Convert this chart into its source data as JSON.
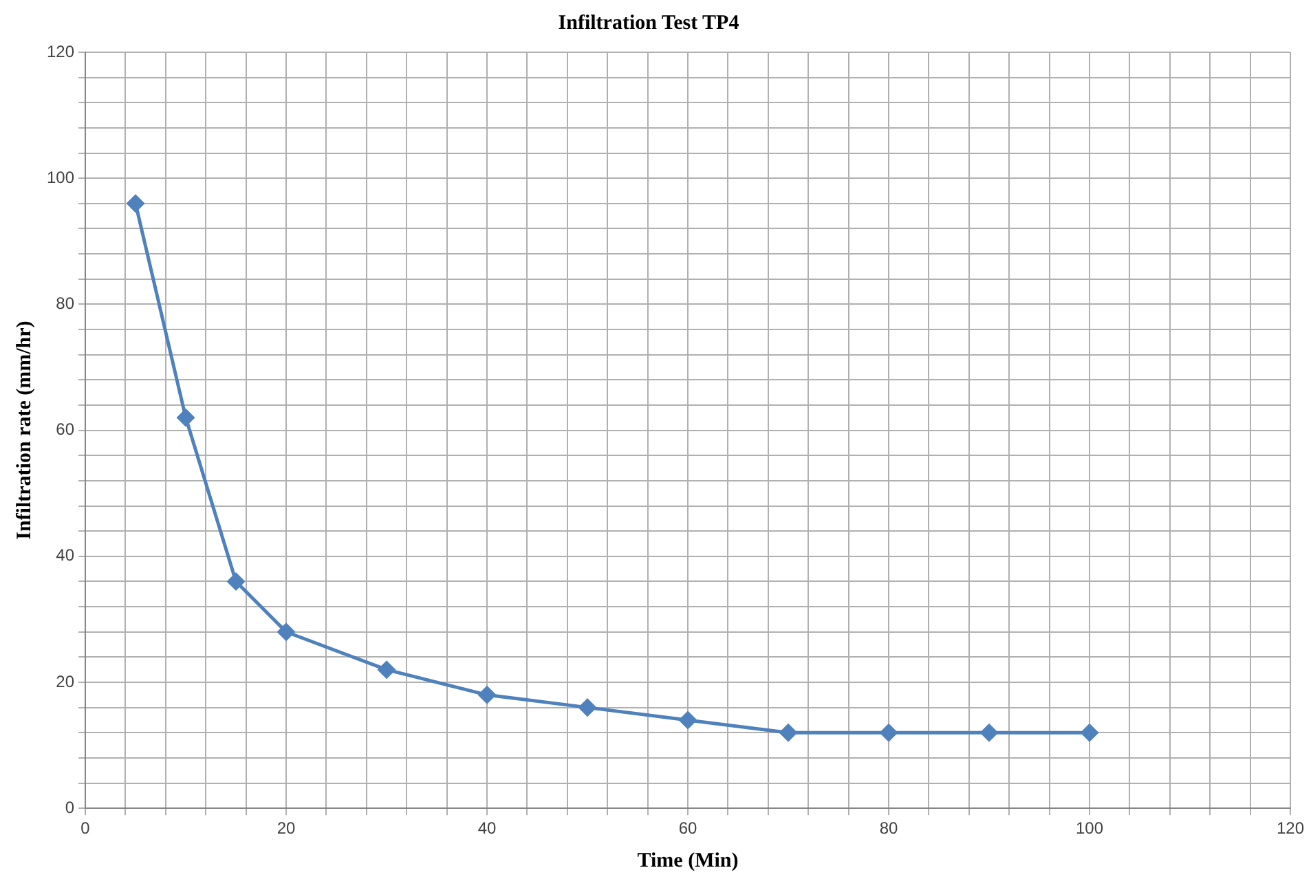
{
  "chart_data": {
    "type": "line",
    "title": "Infiltration Test TP4",
    "xlabel": "Time (Min)",
    "ylabel": "Infiltration rate (mm/hr)",
    "x": [
      5,
      10,
      15,
      20,
      30,
      40,
      50,
      60,
      70,
      80,
      90,
      100
    ],
    "series": [
      {
        "color": "#4f81bd",
        "values": [
          96,
          62,
          36,
          28,
          22,
          18,
          16,
          14,
          12,
          12,
          12,
          12
        ]
      }
    ],
    "xlim": [
      0,
      120
    ],
    "xticks": [
      0,
      {
        "value": 4,
        "label": null
      },
      {
        "value": 8,
        "label": null
      },
      {
        "value": 12,
        "label": null
      },
      {
        "value": 16,
        "label": null
      },
      20,
      {
        "value": 24,
        "label": null
      },
      {
        "value": 28,
        "label": null
      },
      {
        "value": 32,
        "label": null
      },
      {
        "value": 36,
        "label": null
      },
      40,
      {
        "value": 44,
        "label": null
      },
      {
        "value": 48,
        "label": null
      },
      {
        "value": 52,
        "label": null
      },
      {
        "value": 56,
        "label": null
      },
      60,
      {
        "value": 64,
        "label": null
      },
      {
        "value": 68,
        "label": null
      },
      {
        "value": 72,
        "label": null
      },
      {
        "value": 76,
        "label": null
      },
      80,
      {
        "value": 84,
        "label": null
      },
      {
        "value": 88,
        "label": null
      },
      {
        "value": 92,
        "label": null
      },
      {
        "value": 96,
        "label": null
      },
      100,
      {
        "value": 104,
        "label": null
      },
      {
        "value": 108,
        "label": null
      },
      {
        "value": 112,
        "label": null
      },
      {
        "value": 116,
        "label": null
      },
      120
    ],
    "ylim": [
      0,
      120
    ],
    "yticks": [
      0,
      {
        "value": 4,
        "label": null
      },
      {
        "value": 8,
        "label": null
      },
      {
        "value": 12,
        "label": null
      },
      {
        "value": 16,
        "label": null
      },
      20,
      {
        "value": 24,
        "label": null
      },
      {
        "value": 28,
        "label": null
      },
      {
        "value": 32,
        "label": null
      },
      {
        "value": 36,
        "label": null
      },
      40,
      {
        "value": 44,
        "label": null
      },
      {
        "value": 48,
        "label": null
      },
      {
        "value": 52,
        "label": null
      },
      {
        "value": 56,
        "label": null
      },
      60,
      {
        "value": 64,
        "label": null
      },
      {
        "value": 68,
        "label": null
      },
      {
        "value": 72,
        "label": null
      },
      {
        "value": 76,
        "label": null
      },
      80,
      {
        "value": 84,
        "label": null
      },
      {
        "value": 88,
        "label": null
      },
      {
        "value": 92,
        "label": null
      },
      {
        "value": 96,
        "label": null
      },
      100,
      {
        "value": 104,
        "label": null
      },
      {
        "value": 108,
        "label": null
      },
      {
        "value": 112,
        "label": null
      },
      {
        "value": 116,
        "label": null
      },
      120
    ],
    "grid": true,
    "legend": false,
    "marker": "diamond",
    "line_style": "solid"
  }
}
